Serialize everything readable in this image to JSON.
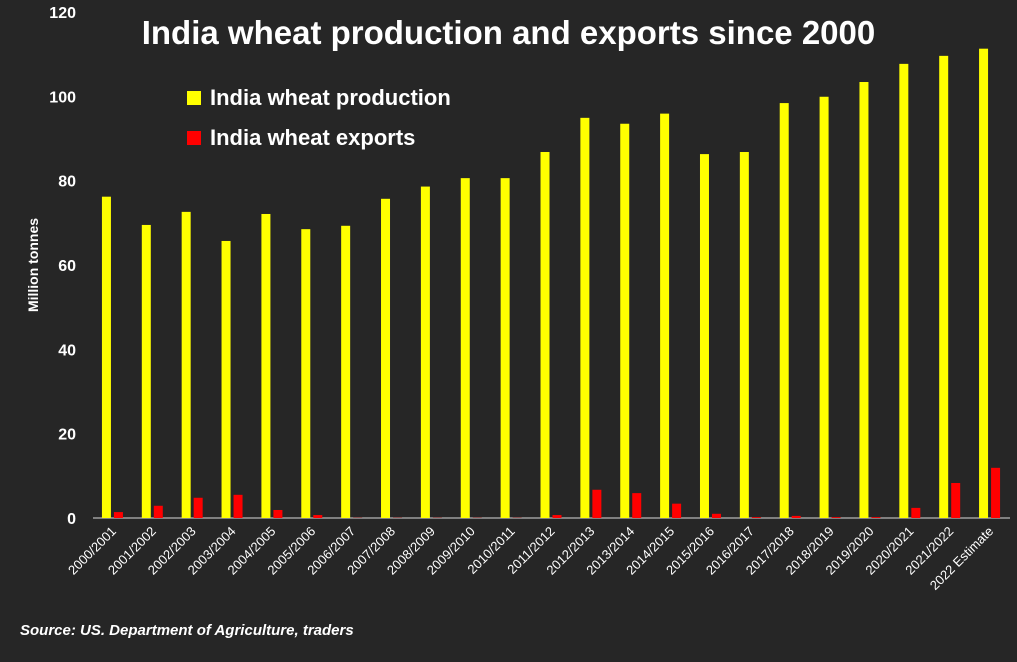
{
  "chart_data": {
    "type": "bar",
    "title": "India wheat production and exports since 2000",
    "ylabel": "Million tonnes",
    "xlabel": "",
    "ylim": [
      0,
      120
    ],
    "yticks": [
      0,
      20,
      40,
      60,
      80,
      100,
      120
    ],
    "grid": false,
    "legend_placement": "top-left",
    "categories": [
      "2000/2001",
      "2001/2002",
      "2002/2003",
      "2003/2004",
      "2004/2005",
      "2005/2006",
      "2006/2007",
      "2007/2008",
      "2008/2009",
      "2009/2010",
      "2010/2011",
      "2011/2012",
      "2012/2013",
      "2013/2014",
      "2014/2015",
      "2015/2016",
      "2016/2017",
      "2017/2018",
      "2018/2019",
      "2019/2020",
      "2020/2021",
      "2021/2022",
      "2022 Estimate"
    ],
    "series": [
      {
        "name": "India wheat production",
        "color": "#ffff00",
        "values": [
          76.2,
          69.5,
          72.6,
          65.7,
          72.1,
          68.5,
          69.3,
          75.7,
          78.6,
          80.6,
          80.6,
          86.8,
          94.9,
          93.5,
          95.9,
          86.3,
          86.8,
          98.4,
          99.9,
          103.4,
          107.7,
          109.6,
          111.3
        ]
      },
      {
        "name": "India wheat exports",
        "color": "#ff0000",
        "values": [
          1.4,
          2.9,
          4.8,
          5.5,
          1.9,
          0.7,
          0.05,
          0.05,
          0.05,
          0.05,
          0.05,
          0.7,
          6.7,
          5.9,
          3.4,
          1.0,
          0.2,
          0.5,
          0.2,
          0.2,
          2.4,
          8.3,
          11.9
        ]
      }
    ],
    "source": "Source: US. Department of Agriculture, traders"
  }
}
